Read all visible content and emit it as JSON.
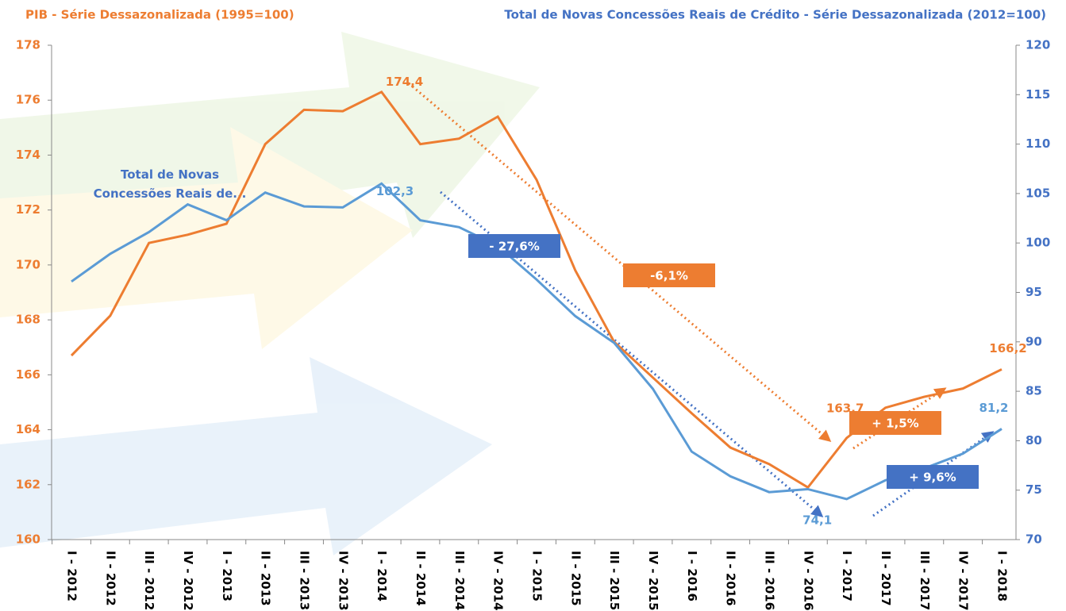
{
  "chart_data": {
    "type": "line",
    "categories": [
      "I - 2012",
      "II - 2012",
      "III - 2012",
      "IV - 2012",
      "I - 2013",
      "II - 2013",
      "III - 2013",
      "IV - 2013",
      "I - 2014",
      "II - 2014",
      "III - 2014",
      "IV - 2014",
      "I - 2015",
      "II - 2015",
      "III - 2015",
      "IV - 2015",
      "I - 2016",
      "II - 2016",
      "III - 2016",
      "IV - 2016",
      "I - 2017",
      "II - 2017",
      "III - 2017",
      "IV - 2017",
      "I - 2018"
    ],
    "series": [
      {
        "name": "PIB - Série Dessazonalizada (1995=100)",
        "color": "#ed7d31",
        "axis": "y",
        "values": [
          166.7,
          168.15,
          170.8,
          171.1,
          171.5,
          174.4,
          175.65,
          175.6,
          176.3,
          174.4,
          174.6,
          175.4,
          173.1,
          169.8,
          167.2,
          165.9,
          164.6,
          163.35,
          162.75,
          161.9,
          163.7,
          164.8,
          165.2,
          165.5,
          166.2
        ],
        "value_labels": [
          null,
          null,
          null,
          null,
          null,
          null,
          null,
          null,
          null,
          "174,4",
          null,
          null,
          null,
          null,
          null,
          null,
          null,
          null,
          null,
          null,
          "163,7",
          null,
          null,
          null,
          "166,2"
        ]
      },
      {
        "name": "Total de Novas Concessões Reais de Crédito - Série Dessazonalizada (2012=100)",
        "color": "#5b9bd5",
        "axis": "y2",
        "values": [
          96.1,
          98.9,
          101.1,
          103.9,
          102.3,
          105.1,
          103.7,
          103.6,
          106.0,
          102.3,
          101.6,
          99.7,
          96.3,
          92.6,
          89.9,
          85.25,
          78.9,
          76.4,
          74.8,
          75.1,
          74.1,
          76.0,
          77.2,
          78.7,
          81.2
        ],
        "value_labels": [
          null,
          null,
          null,
          null,
          null,
          null,
          null,
          null,
          null,
          "102,3",
          null,
          null,
          null,
          null,
          null,
          null,
          null,
          null,
          null,
          null,
          "74,1",
          null,
          null,
          null,
          "81,2"
        ]
      }
    ],
    "ylim": [
      160,
      178
    ],
    "yticks": [
      160,
      162,
      164,
      166,
      168,
      170,
      172,
      174,
      176,
      178
    ],
    "y2lim": [
      70,
      120
    ],
    "y2ticks": [
      70,
      75,
      80,
      85,
      90,
      95,
      100,
      105,
      110,
      115,
      120
    ],
    "series_label": "Total de Novas Concessões Reais de...",
    "annotations": [
      {
        "text": "- 27,6%",
        "color": "#4472c4"
      },
      {
        "text": "-6,1%",
        "color": "#ed7d31"
      },
      {
        "text": "+ 1,5%",
        "color": "#ed7d31"
      },
      {
        "text": "+ 9,6%",
        "color": "#4472c4"
      }
    ]
  }
}
